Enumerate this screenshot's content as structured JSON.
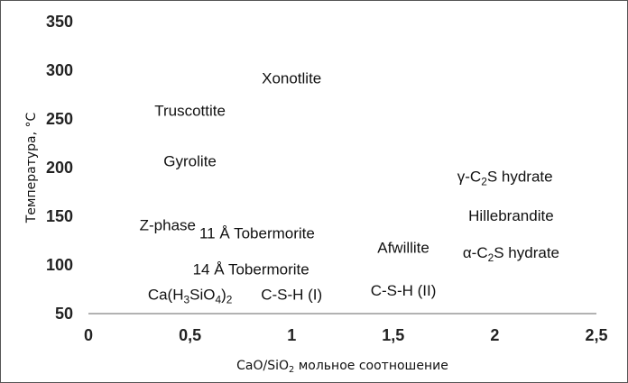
{
  "chart_data": {
    "type": "scatter",
    "xlabel": {
      "parts": [
        {
          "t": "CaO/SiO"
        },
        {
          "t": "2",
          "sub": true
        },
        {
          "t": " мольное соотношение"
        }
      ]
    },
    "ylabel": "Температура, °С",
    "xlim": [
      0,
      2.5
    ],
    "ylim": [
      50,
      350
    ],
    "xticks": [
      {
        "v": 0,
        "label": "0"
      },
      {
        "v": 0.5,
        "label": "0,5"
      },
      {
        "v": 1,
        "label": "1"
      },
      {
        "v": 1.5,
        "label": "1,5"
      },
      {
        "v": 2,
        "label": "2"
      },
      {
        "v": 2.5,
        "label": "2,5"
      }
    ],
    "yticks": [
      {
        "v": 50,
        "label": "50"
      },
      {
        "v": 100,
        "label": "100"
      },
      {
        "v": 150,
        "label": "150"
      },
      {
        "v": 200,
        "label": "200"
      },
      {
        "v": 250,
        "label": "250"
      },
      {
        "v": 300,
        "label": "300"
      },
      {
        "v": 350,
        "label": "350"
      }
    ],
    "grid": false,
    "points": [
      {
        "x": 1.0,
        "y": 292,
        "parts": [
          {
            "t": "Xonotlite"
          }
        ]
      },
      {
        "x": 0.5,
        "y": 259,
        "parts": [
          {
            "t": "Truscottite"
          }
        ]
      },
      {
        "x": 0.5,
        "y": 207,
        "parts": [
          {
            "t": "Gyrolite"
          }
        ]
      },
      {
        "x": 0.83,
        "y": 133,
        "parts": [
          {
            "t": "11 Å Tobermorite"
          }
        ]
      },
      {
        "x": 0.39,
        "y": 141,
        "parts": [
          {
            "t": "Z-phase"
          }
        ]
      },
      {
        "x": 0.8,
        "y": 96,
        "parts": [
          {
            "t": "14 Å Tobermorite"
          }
        ]
      },
      {
        "x": 0.5,
        "y": 70,
        "parts": [
          {
            "t": "Ca(H"
          },
          {
            "t": "3",
            "sub": true
          },
          {
            "t": "SiO"
          },
          {
            "t": "4",
            "sub": true
          },
          {
            "t": ")"
          },
          {
            "t": "2",
            "sub": true
          }
        ]
      },
      {
        "x": 1.0,
        "y": 70,
        "parts": [
          {
            "t": "C-S-H (I)"
          }
        ]
      },
      {
        "x": 1.55,
        "y": 74,
        "parts": [
          {
            "t": "C-S-H (II)"
          }
        ]
      },
      {
        "x": 1.55,
        "y": 118,
        "parts": [
          {
            "t": "Afwillite"
          }
        ]
      },
      {
        "x": 2.05,
        "y": 191,
        "parts": [
          {
            "t": "γ-C"
          },
          {
            "t": "2",
            "sub": true
          },
          {
            "t": "S hydrate"
          }
        ]
      },
      {
        "x": 2.08,
        "y": 151,
        "parts": [
          {
            "t": "Hillebrandite"
          }
        ]
      },
      {
        "x": 2.08,
        "y": 113,
        "parts": [
          {
            "t": "α-C"
          },
          {
            "t": "2",
            "sub": true
          },
          {
            "t": "S hydrate"
          }
        ]
      }
    ]
  }
}
